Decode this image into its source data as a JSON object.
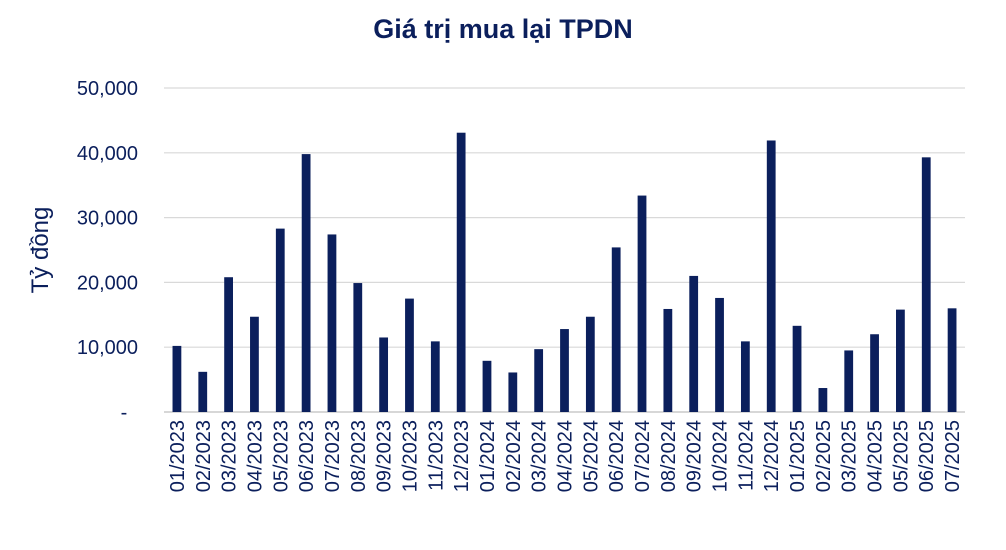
{
  "chart_data": {
    "type": "bar",
    "title": "Giá trị mua lại TPDN",
    "xlabel": "",
    "ylabel": "Tỷ đồng",
    "ylim": [
      0,
      50000
    ],
    "yticks": [
      0,
      10000,
      20000,
      30000,
      40000,
      50000
    ],
    "ytick_labels": [
      "-",
      "10,000",
      "20,000",
      "30,000",
      "40,000",
      "50,000"
    ],
    "grid": true,
    "bar_color": "#0b1f5c",
    "categories": [
      "01/2023",
      "02/2023",
      "03/2023",
      "04/2023",
      "05/2023",
      "06/2023",
      "07/2023",
      "08/2023",
      "09/2023",
      "10/2023",
      "11/2023",
      "12/2023",
      "01/2024",
      "02/2024",
      "03/2024",
      "04/2024",
      "05/2024",
      "06/2024",
      "07/2024",
      "08/2024",
      "09/2024",
      "10/2024",
      "11/2024",
      "12/2024",
      "01/2025",
      "02/2025",
      "03/2025",
      "04/2025",
      "05/2025",
      "06/2025",
      "07/2025"
    ],
    "values": [
      10200,
      6200,
      20800,
      14700,
      28300,
      39800,
      27400,
      19900,
      11500,
      17500,
      10900,
      43100,
      7900,
      6100,
      9700,
      12800,
      14700,
      25400,
      33400,
      15900,
      21000,
      17600,
      10900,
      41900,
      13300,
      3700,
      9500,
      12000,
      15800,
      39300,
      16000
    ]
  }
}
